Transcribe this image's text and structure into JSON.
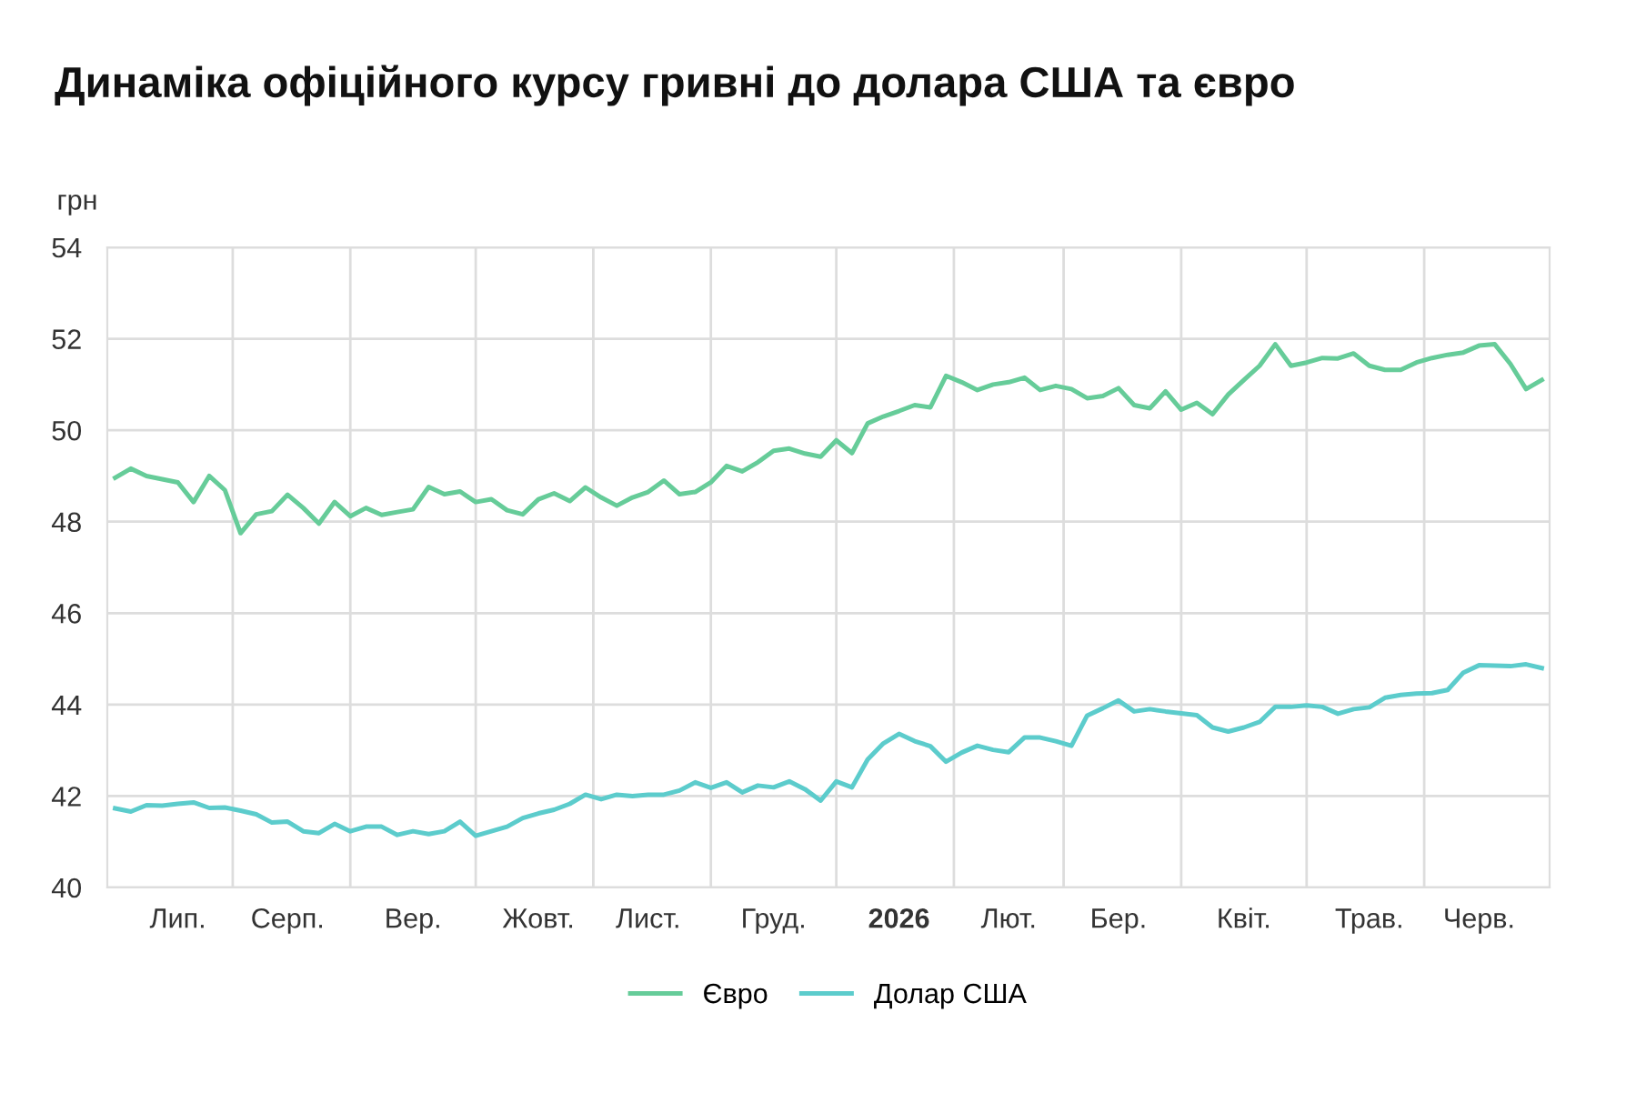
{
  "chart_data": {
    "type": "line",
    "title": "Динаміка офіційного курсу гривні до долара США та євро",
    "ylabel": "грн",
    "categories": [
      null,
      null,
      null,
      null,
      "Лип.",
      null,
      null,
      null,
      null,
      null,
      null,
      "Серп.",
      null,
      null,
      null,
      null,
      null,
      null,
      null,
      "Вер.",
      null,
      null,
      null,
      null,
      null,
      null,
      null,
      "Жовт.",
      null,
      null,
      null,
      null,
      null,
      null,
      "Лист.",
      null,
      null,
      null,
      null,
      null,
      null,
      null,
      "Груд.",
      null,
      null,
      null,
      null,
      null,
      null,
      null,
      "2026",
      null,
      null,
      null,
      null,
      null,
      null,
      "Лют.",
      null,
      null,
      null,
      null,
      null,
      null,
      "Бер.",
      null,
      null,
      null,
      null,
      null,
      null,
      null,
      "Квіт.",
      null,
      null,
      null,
      null,
      null,
      null,
      null,
      "Трав.",
      null,
      null,
      null,
      null,
      null,
      null,
      "Черв.",
      null,
      null,
      null,
      null
    ],
    "ylim": [
      40,
      54
    ],
    "yticks": [
      40,
      42,
      44,
      46,
      48,
      50,
      52,
      54
    ],
    "grid": true,
    "legend": "bottom",
    "marker": "none",
    "line_style": "solid",
    "series": [
      {
        "name": "Євро",
        "color": "#66cc99",
        "values": [
          48.96,
          49.16,
          49.0,
          48.93,
          48.86,
          48.43,
          49.0,
          48.69,
          47.75,
          48.16,
          48.23,
          48.59,
          48.3,
          47.96,
          48.43,
          48.12,
          48.3,
          48.15,
          48.21,
          48.27,
          48.76,
          48.6,
          48.66,
          48.43,
          48.49,
          48.25,
          48.16,
          48.49,
          48.62,
          48.45,
          48.75,
          48.53,
          48.35,
          48.53,
          48.65,
          48.9,
          48.6,
          48.65,
          48.86,
          49.22,
          49.1,
          49.3,
          49.55,
          49.6,
          49.49,
          49.42,
          49.78,
          49.5,
          50.15,
          50.3,
          50.42,
          50.55,
          50.5,
          51.19,
          51.05,
          50.88,
          51.0,
          51.05,
          51.15,
          50.88,
          50.97,
          50.9,
          50.7,
          50.75,
          50.92,
          50.55,
          50.48,
          50.85,
          50.45,
          50.6,
          50.35,
          50.78,
          51.1,
          51.41,
          51.88,
          51.41,
          51.48,
          51.58,
          51.57,
          51.68,
          51.41,
          51.32,
          51.32,
          51.48,
          51.58,
          51.65,
          51.7,
          51.85,
          51.88,
          51.45,
          50.9,
          51.1
        ]
      },
      {
        "name": "Долар США",
        "color": "#5ccccc",
        "values": [
          41.73,
          41.66,
          41.8,
          41.79,
          41.83,
          41.86,
          41.74,
          41.75,
          41.68,
          41.6,
          41.42,
          41.44,
          41.23,
          41.19,
          41.39,
          41.23,
          41.33,
          41.33,
          41.15,
          41.23,
          41.17,
          41.23,
          41.44,
          41.13,
          41.23,
          41.33,
          41.52,
          41.62,
          41.7,
          41.83,
          42.03,
          41.93,
          42.03,
          42.0,
          42.03,
          42.03,
          42.12,
          42.3,
          42.18,
          42.3,
          42.08,
          42.23,
          42.19,
          42.32,
          42.15,
          41.9,
          42.32,
          42.19,
          42.8,
          43.15,
          43.36,
          43.2,
          43.09,
          42.75,
          42.95,
          43.1,
          43.01,
          42.96,
          43.28,
          43.28,
          43.2,
          43.1,
          43.76,
          43.92,
          44.09,
          43.85,
          43.9,
          43.85,
          43.81,
          43.77,
          43.5,
          43.41,
          43.5,
          43.62,
          43.95,
          43.95,
          43.98,
          43.95,
          43.8,
          43.9,
          43.94,
          44.15,
          44.21,
          44.24,
          44.25,
          44.32,
          44.7,
          44.86,
          44.85,
          44.84,
          44.88,
          44.8
        ]
      }
    ]
  }
}
